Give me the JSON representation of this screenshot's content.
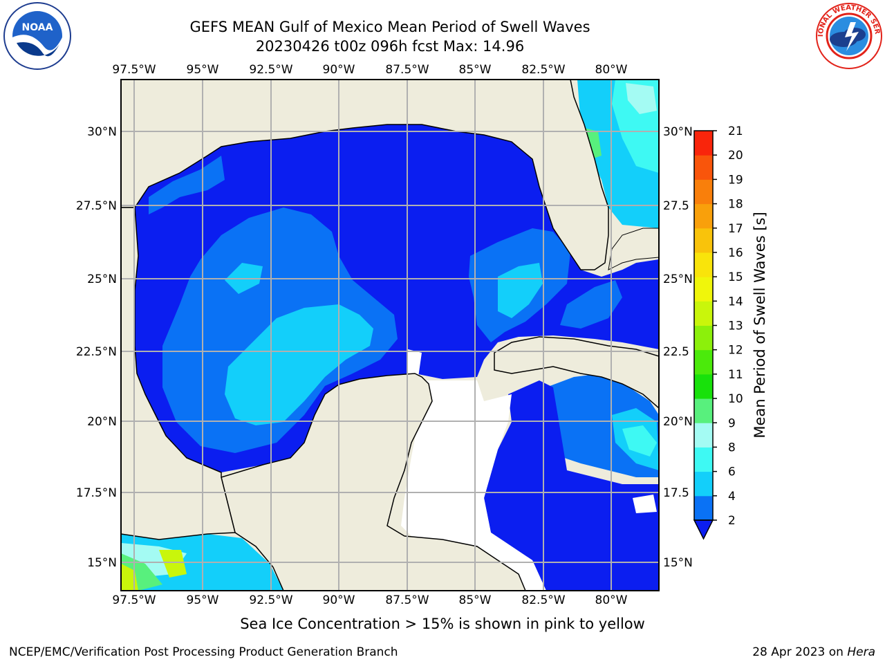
{
  "header": {
    "title_line1": "GEFS MEAN Gulf of Mexico Mean Period of Swell Waves",
    "title_line2": "20230426 t00z 096h fcst   Max: 14.96"
  },
  "logos": {
    "left": {
      "name": "noaa-logo",
      "text": "NOAA"
    },
    "right": {
      "name": "nws-logo",
      "text": "NATIONAL WEATHER SERVICE"
    }
  },
  "map": {
    "lon_labels": [
      "97.5°W",
      "95°W",
      "92.5°W",
      "90°W",
      "87.5°W",
      "85°W",
      "82.5°W",
      "80°W"
    ],
    "lat_labels_left": [
      "30°N",
      "27.5°N",
      "25°N",
      "22.5°N",
      "20°N",
      "17.5°N",
      "15°N"
    ],
    "lat_labels_right": [
      "30°N",
      "27.5",
      "25°N",
      "22.5",
      "20°N",
      "17.5",
      "15°N"
    ],
    "colors": {
      "land": "#eeecdc",
      "ocean_base": "#0b1ef0",
      "grid": "#b0b0b0"
    }
  },
  "colorbar": {
    "label": "Mean Period of Swell Waves [s]",
    "ticks": [
      "2",
      "4",
      "6",
      "8",
      "9",
      "10",
      "11",
      "12",
      "13",
      "14",
      "15",
      "16",
      "17",
      "18",
      "19",
      "20",
      "21"
    ],
    "colors": [
      "#0a72f5",
      "#13cffa",
      "#3ef9f3",
      "#a4fbf3",
      "#58f07d",
      "#18e10b",
      "#4bea0b",
      "#8cf00b",
      "#c9f60b",
      "#f0f60b",
      "#f9e40b",
      "#f9c30b",
      "#f9a00b",
      "#f97f0b",
      "#f9550b",
      "#f9250b"
    ],
    "extend_color": "#0b1ef0"
  },
  "caption": "Sea Ice Concentration > 15% is shown in pink to yellow",
  "footer": {
    "left": "NCEP/EMC/Verification Post Processing Product Generation Branch",
    "right_prefix": "28 Apr 2023 on ",
    "right_host": "Hera"
  }
}
